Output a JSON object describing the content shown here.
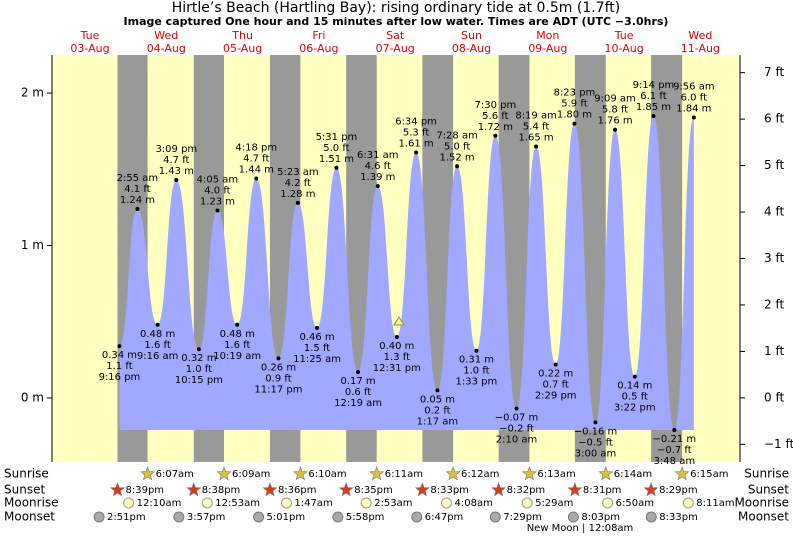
{
  "chart_data": {
    "type": "tide",
    "title": "Hirtle’s Beach (Hartling Bay): rising  ordinary tide at 0.5m (1.7ft)",
    "subtitle": "Image captured One hour and 15 minutes after low water. Times are ADT (UTC −3.0hrs)",
    "days": [
      {
        "weekday": "Tue",
        "date": "03-Aug"
      },
      {
        "weekday": "Wed",
        "date": "04-Aug"
      },
      {
        "weekday": "Thu",
        "date": "05-Aug"
      },
      {
        "weekday": "Fri",
        "date": "06-Aug"
      },
      {
        "weekday": "Sat",
        "date": "07-Aug"
      },
      {
        "weekday": "Sun",
        "date": "08-Aug"
      },
      {
        "weekday": "Mon",
        "date": "09-Aug"
      },
      {
        "weekday": "Tue",
        "date": "10-Aug"
      },
      {
        "weekday": "Wed",
        "date": "11-Aug"
      }
    ],
    "ylim": [
      -0.42,
      2.25
    ],
    "yticks": [
      {
        "value": 0,
        "label": "0 m"
      },
      {
        "value": 1,
        "label": "1 m"
      },
      {
        "value": 2,
        "label": "2 m"
      }
    ],
    "y2lim": [
      -1.38,
      7.38
    ],
    "y2ticks": [
      {
        "value": -1,
        "label": "−1 ft"
      },
      {
        "value": 0,
        "label": "0 ft"
      },
      {
        "value": 1,
        "label": "1 ft"
      },
      {
        "value": 2,
        "label": "2 ft"
      },
      {
        "value": 3,
        "label": "3 ft"
      },
      {
        "value": 4,
        "label": "4 ft"
      },
      {
        "value": 5,
        "label": "5 ft"
      },
      {
        "value": 6,
        "label": "6 ft"
      },
      {
        "value": 7,
        "label": "7 ft"
      }
    ],
    "color": "#a0a8ff",
    "extremes": [
      {
        "kind": "low",
        "time": "9:16 pm",
        "height_m": {
          "value": 0.34,
          "label": "0.34 m"
        },
        "height_ft": "1.1 ft"
      },
      {
        "kind": "high",
        "time": "2:55 am",
        "height_m": {
          "value": 1.24,
          "label": "1.24 m"
        },
        "height_ft": "4.1 ft"
      },
      {
        "kind": "low",
        "time": "9:16 am",
        "height_m": {
          "value": 0.48,
          "label": "0.48 m"
        },
        "height_ft": "1.6 ft"
      },
      {
        "kind": "high",
        "time": "3:09 pm",
        "height_m": {
          "value": 1.43,
          "label": "1.43 m"
        },
        "height_ft": "4.7 ft"
      },
      {
        "kind": "low",
        "time": "10:15 pm",
        "height_m": {
          "value": 0.32,
          "label": "0.32 m"
        },
        "height_ft": "1.0 ft"
      },
      {
        "kind": "high",
        "time": "4:05 am",
        "height_m": {
          "value": 1.23,
          "label": "1.23 m"
        },
        "height_ft": "4.0 ft"
      },
      {
        "kind": "low",
        "time": "10:19 am",
        "height_m": {
          "value": 0.48,
          "label": "0.48 m"
        },
        "height_ft": "1.6 ft"
      },
      {
        "kind": "high",
        "time": "4:18 pm",
        "height_m": {
          "value": 1.44,
          "label": "1.44 m"
        },
        "height_ft": "4.7 ft"
      },
      {
        "kind": "low",
        "time": "11:17 pm",
        "height_m": {
          "value": 0.26,
          "label": "0.26 m"
        },
        "height_ft": "0.9 ft"
      },
      {
        "kind": "high",
        "time": "5:23 am",
        "height_m": {
          "value": 1.28,
          "label": "1.28 m"
        },
        "height_ft": "4.2 ft"
      },
      {
        "kind": "low",
        "time": "11:25 am",
        "height_m": {
          "value": 0.46,
          "label": "0.46 m"
        },
        "height_ft": "1.5 ft"
      },
      {
        "kind": "high",
        "time": "5:31 pm",
        "height_m": {
          "value": 1.51,
          "label": "1.51 m"
        },
        "height_ft": "5.0 ft"
      },
      {
        "kind": "low",
        "time": "12:19 am",
        "height_m": {
          "value": 0.17,
          "label": "0.17 m"
        },
        "height_ft": "0.6 ft"
      },
      {
        "kind": "high",
        "time": "6:31 am",
        "height_m": {
          "value": 1.39,
          "label": "1.39 m"
        },
        "height_ft": "4.6 ft"
      },
      {
        "kind": "low",
        "time": "12:31 pm",
        "height_m": {
          "value": 0.4,
          "label": "0.40 m"
        },
        "height_ft": "1.3 ft"
      },
      {
        "kind": "high",
        "time": "6:34 pm",
        "height_m": {
          "value": 1.61,
          "label": "1.61 m"
        },
        "height_ft": "5.3 ft"
      },
      {
        "kind": "low",
        "time": "1:17 am",
        "height_m": {
          "value": 0.05,
          "label": "0.05 m"
        },
        "height_ft": "0.2 ft"
      },
      {
        "kind": "high",
        "time": "7:28 am",
        "height_m": {
          "value": 1.52,
          "label": "1.52 m"
        },
        "height_ft": "5.0 ft"
      },
      {
        "kind": "low",
        "time": "1:33 pm",
        "height_m": {
          "value": 0.31,
          "label": "0.31 m"
        },
        "height_ft": "1.0 ft"
      },
      {
        "kind": "high",
        "time": "7:30 pm",
        "height_m": {
          "value": 1.72,
          "label": "1.72 m"
        },
        "height_ft": "5.6 ft"
      },
      {
        "kind": "low",
        "time": "2:10 am",
        "height_m": {
          "value": -0.07,
          "label": "−0.07 m"
        },
        "height_ft": "−0.2 ft"
      },
      {
        "kind": "high",
        "time": "8:19 am",
        "height_m": {
          "value": 1.65,
          "label": "1.65 m"
        },
        "height_ft": "5.4 ft"
      },
      {
        "kind": "low",
        "time": "2:29 pm",
        "height_m": {
          "value": 0.22,
          "label": "0.22 m"
        },
        "height_ft": "0.7 ft"
      },
      {
        "kind": "high",
        "time": "8:23 pm",
        "height_m": {
          "value": 1.8,
          "label": "1.80 m"
        },
        "height_ft": "5.9 ft"
      },
      {
        "kind": "low",
        "time": "3:00 am",
        "height_m": {
          "value": -0.16,
          "label": "−0.16 m"
        },
        "height_ft": "−0.5 ft"
      },
      {
        "kind": "high",
        "time": "9:09 am",
        "height_m": {
          "value": 1.76,
          "label": "1.76 m"
        },
        "height_ft": "5.8 ft"
      },
      {
        "kind": "low",
        "time": "3:22 pm",
        "height_m": {
          "value": 0.14,
          "label": "0.14 m"
        },
        "height_ft": "0.5 ft"
      },
      {
        "kind": "high",
        "time": "9:14 pm",
        "height_m": {
          "value": 1.85,
          "label": "1.85 m"
        },
        "height_ft": "6.1 ft"
      },
      {
        "kind": "low",
        "time": "3:48 am",
        "height_m": {
          "value": -0.21,
          "label": "−0.21 m"
        },
        "height_ft": "−0.7 ft"
      },
      {
        "kind": "high",
        "time": "9:56 am",
        "height_m": {
          "value": 1.84,
          "label": "1.84 m"
        },
        "height_ft": "6.0 ft"
      }
    ],
    "rows": {
      "sunrise": {
        "label": "Sunrise",
        "times": [
          "6:07am",
          "6:09am",
          "6:10am",
          "6:11am",
          "6:12am",
          "6:13am",
          "6:14am",
          "6:15am"
        ]
      },
      "sunset": {
        "label": "Sunset",
        "times": [
          "8:39pm",
          "8:38pm",
          "8:36pm",
          "8:35pm",
          "8:33pm",
          "8:32pm",
          "8:31pm",
          "8:29pm"
        ]
      },
      "moonrise": {
        "label": "Moonrise",
        "times": [
          "12:10am",
          "12:53am",
          "1:47am",
          "2:53am",
          "4:08am",
          "5:29am",
          "6:50am",
          "8:11am"
        ]
      },
      "moonset": {
        "label": "Moonset",
        "times": [
          "2:51pm",
          "3:57pm",
          "5:01pm",
          "5:58pm",
          "6:47pm",
          "7:29pm",
          "8:03pm",
          "8:33pm"
        ]
      }
    },
    "moon_phase": "New Moon | 12:08am"
  }
}
